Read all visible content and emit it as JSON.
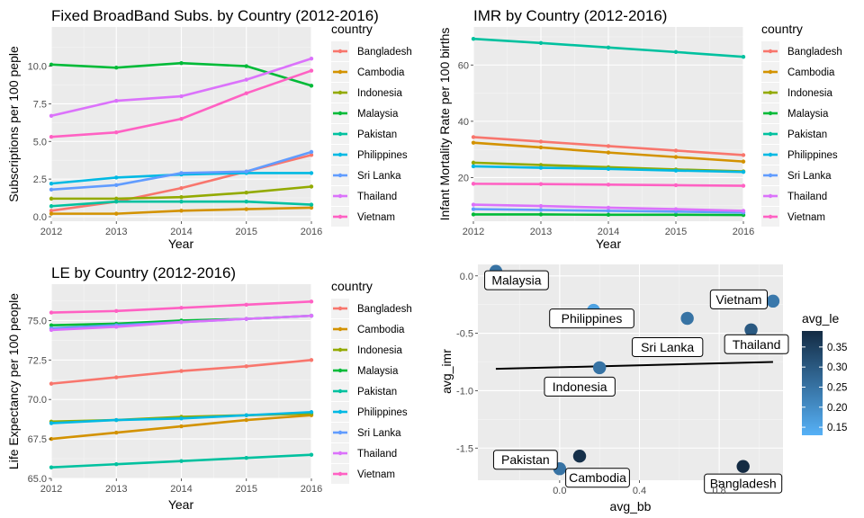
{
  "chart_data": [
    {
      "type": "line",
      "title": "Fixed BroadBand Subs. by Country (2012-2016)",
      "xlabel": "Year",
      "ylabel": "Subscriptions per 100 peple",
      "x": [
        2012,
        2013,
        2014,
        2015,
        2016
      ],
      "xlim": [
        2012,
        2016
      ],
      "ylim": [
        -0.3,
        12.6
      ],
      "yticks": [
        0.0,
        2.5,
        5.0,
        7.5,
        10.0
      ],
      "ytick_labels": [
        "0.0",
        "2.5",
        "5.0",
        "7.5",
        "10.0"
      ],
      "grid": true,
      "legend_title": "country",
      "legend_position": "right",
      "series": [
        {
          "name": "Bangladesh",
          "color": "#F8766D",
          "values": [
            0.4,
            1.0,
            1.9,
            3.0,
            4.1
          ]
        },
        {
          "name": "Cambodia",
          "color": "#D39200",
          "values": [
            0.2,
            0.2,
            0.4,
            0.5,
            0.6
          ]
        },
        {
          "name": "Indonesia",
          "color": "#93AA00",
          "values": [
            1.2,
            1.2,
            1.3,
            1.6,
            2.0
          ]
        },
        {
          "name": "Malaysia",
          "color": "#00BA38",
          "values": [
            10.1,
            9.9,
            10.2,
            10.0,
            8.7
          ]
        },
        {
          "name": "Pakistan",
          "color": "#00C19F",
          "values": [
            0.7,
            1.0,
            1.0,
            1.0,
            0.8
          ]
        },
        {
          "name": "Philippines",
          "color": "#00B9E3",
          "values": [
            2.2,
            2.6,
            2.8,
            2.9,
            2.9
          ]
        },
        {
          "name": "Sri Lanka",
          "color": "#619CFF",
          "values": [
            1.8,
            2.1,
            2.9,
            3.0,
            4.3
          ]
        },
        {
          "name": "Thailand",
          "color": "#DB72FB",
          "values": [
            6.7,
            7.7,
            8.0,
            9.1,
            10.5
          ]
        },
        {
          "name": "Vietnam",
          "color": "#FF61C3",
          "values": [
            5.3,
            5.6,
            6.5,
            8.2,
            9.7
          ]
        }
      ]
    },
    {
      "type": "line",
      "title": "IMR by Country (2012-2016)",
      "xlabel": "Year",
      "ylabel": "Infant Mortality Rate per 100 births",
      "x": [
        2012,
        2013,
        2014,
        2015,
        2016
      ],
      "xlim": [
        2012,
        2016
      ],
      "ylim": [
        4.5,
        73.5
      ],
      "yticks": [
        20,
        40,
        60
      ],
      "ytick_labels": [
        "20",
        "40",
        "60"
      ],
      "grid": true,
      "legend_title": "country",
      "legend_position": "right",
      "series": [
        {
          "name": "Bangladesh",
          "color": "#F8766D",
          "values": [
            34.4,
            32.8,
            31.2,
            29.6,
            28.0
          ]
        },
        {
          "name": "Cambodia",
          "color": "#D39200",
          "values": [
            32.4,
            30.7,
            28.9,
            27.3,
            25.7
          ]
        },
        {
          "name": "Indonesia",
          "color": "#93AA00",
          "values": [
            25.3,
            24.5,
            23.7,
            22.9,
            22.2
          ]
        },
        {
          "name": "Malaysia",
          "color": "#00BA38",
          "values": [
            6.9,
            6.9,
            6.8,
            6.8,
            6.7
          ]
        },
        {
          "name": "Pakistan",
          "color": "#00C19F",
          "values": [
            69.3,
            67.8,
            66.2,
            64.6,
            62.9
          ]
        },
        {
          "name": "Philippines",
          "color": "#00B9E3",
          "values": [
            24.0,
            23.5,
            23.1,
            22.5,
            22.0
          ]
        },
        {
          "name": "Sri Lanka",
          "color": "#619CFF",
          "values": [
            8.8,
            8.5,
            8.2,
            7.9,
            7.6
          ]
        },
        {
          "name": "Thailand",
          "color": "#DB72FB",
          "values": [
            10.4,
            9.9,
            9.3,
            8.8,
            8.2
          ]
        },
        {
          "name": "Vietnam",
          "color": "#FF61C3",
          "values": [
            17.8,
            17.7,
            17.5,
            17.3,
            17.1
          ]
        }
      ]
    },
    {
      "type": "line",
      "title": "LE by Country (2012-2016)",
      "xlabel": "Year",
      "ylabel": "Life Expectancy per 100 people",
      "x": [
        2012,
        2013,
        2014,
        2015,
        2016
      ],
      "xlim": [
        2012,
        2016
      ],
      "ylim": [
        65.0,
        77.3
      ],
      "yticks": [
        65.0,
        67.5,
        70.0,
        72.5,
        75.0
      ],
      "ytick_labels": [
        "65.0",
        "67.5",
        "70.0",
        "72.5",
        "75.0"
      ],
      "grid": true,
      "legend_title": "country",
      "legend_position": "right",
      "series": [
        {
          "name": "Bangladesh",
          "color": "#F8766D",
          "values": [
            71.0,
            71.4,
            71.8,
            72.1,
            72.5
          ]
        },
        {
          "name": "Cambodia",
          "color": "#D39200",
          "values": [
            67.5,
            67.9,
            68.3,
            68.7,
            69.0
          ]
        },
        {
          "name": "Indonesia",
          "color": "#93AA00",
          "values": [
            68.6,
            68.7,
            68.9,
            69.0,
            69.1
          ]
        },
        {
          "name": "Malaysia",
          "color": "#00BA38",
          "values": [
            74.7,
            74.8,
            75.0,
            75.1,
            75.3
          ]
        },
        {
          "name": "Pakistan",
          "color": "#00C19F",
          "values": [
            65.7,
            65.9,
            66.1,
            66.3,
            66.5
          ]
        },
        {
          "name": "Philippines",
          "color": "#00B9E3",
          "values": [
            68.5,
            68.7,
            68.8,
            69.0,
            69.2
          ]
        },
        {
          "name": "Sri Lanka",
          "color": "#619CFF",
          "values": [
            74.5,
            74.7,
            74.9,
            75.1,
            75.3
          ]
        },
        {
          "name": "Thailand",
          "color": "#DB72FB",
          "values": [
            74.4,
            74.6,
            74.9,
            75.1,
            75.3
          ]
        },
        {
          "name": "Vietnam",
          "color": "#FF61C3",
          "values": [
            75.5,
            75.6,
            75.8,
            76.0,
            76.2
          ]
        }
      ]
    },
    {
      "type": "scatter",
      "xlabel": "avg_bb",
      "ylabel": "avg_imr",
      "xlim": [
        -0.41,
        1.12
      ],
      "ylim": [
        -1.78,
        0.1
      ],
      "xticks": [
        0.0,
        0.4,
        0.8
      ],
      "xtick_labels": [
        "0.0",
        "0.4",
        "0.8"
      ],
      "yticks": [
        0.0,
        -0.5,
        -1.0,
        -1.5
      ],
      "ytick_labels": [
        "0.0",
        "-0.5",
        "-1.0",
        "-1.5"
      ],
      "grid": true,
      "legend_title": "avg_le",
      "legend_position": "right",
      "color_scale": {
        "low": "#56B1F7",
        "high": "#132B43",
        "min": 0.13,
        "max": 0.39,
        "ticks": [
          0.15,
          0.2,
          0.25,
          0.3,
          0.35
        ],
        "tick_labels": [
          "0.15",
          "0.20",
          "0.25",
          "0.30",
          "0.35"
        ]
      },
      "trend_line": {
        "x": [
          -0.32,
          1.07
        ],
        "y": [
          -0.81,
          -0.75
        ],
        "color": "#000000"
      },
      "points": [
        {
          "label": "Malaysia",
          "x": -0.32,
          "y": 0.04,
          "avg_le": 0.25
        },
        {
          "label": "Philippines",
          "x": 0.17,
          "y": -0.3,
          "avg_le": 0.16
        },
        {
          "label": "Sri Lanka",
          "x": 0.64,
          "y": -0.37,
          "avg_le": 0.25
        },
        {
          "label": "Vietnam",
          "x": 1.07,
          "y": -0.22,
          "avg_le": 0.24
        },
        {
          "label": "Thailand",
          "x": 0.96,
          "y": -0.47,
          "avg_le": 0.3
        },
        {
          "label": "Indonesia",
          "x": 0.2,
          "y": -0.8,
          "avg_le": 0.25
        },
        {
          "label": "Cambodia",
          "x": 0.1,
          "y": -1.57,
          "avg_le": 0.38
        },
        {
          "label": "Pakistan",
          "x": 0.0,
          "y": -1.68,
          "avg_le": 0.25
        },
        {
          "label": "Bangladesh",
          "x": 0.92,
          "y": -1.66,
          "avg_le": 0.39
        }
      ]
    }
  ]
}
